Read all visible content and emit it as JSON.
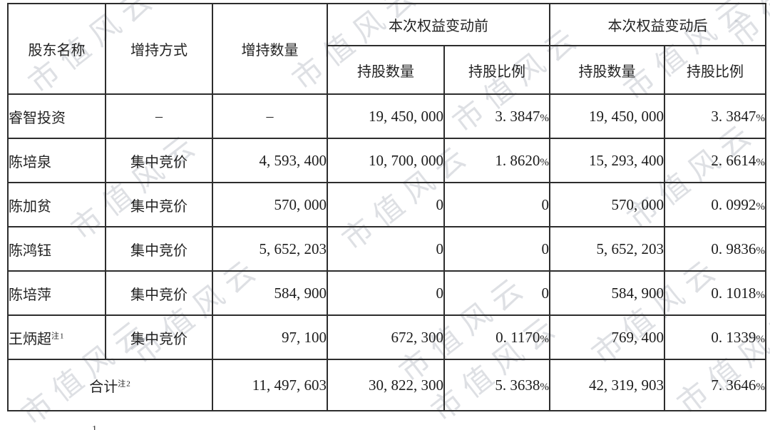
{
  "colors": {
    "border": "#2d2d2d",
    "text": "#1e1e1e",
    "watermark": "#9aa0ac",
    "background": "#ffffff"
  },
  "watermark": {
    "text": "市值风云"
  },
  "table": {
    "headers": {
      "shareholder": "股东名称",
      "method": "增持方式",
      "quantity": "增持数量",
      "before_group": "本次权益变动前",
      "after_group": "本次权益变动后",
      "shares": "持股数量",
      "ratio": "持股比例"
    },
    "rows": [
      {
        "name": "睿智投资",
        "method": "–",
        "qty": "–",
        "pre_shares": "19, 450, 000",
        "pre_pct": "3. 3847%",
        "post_shares": "19, 450, 000",
        "post_pct": "3. 3847%"
      },
      {
        "name": "陈培泉",
        "method": "集中竞价",
        "qty": "4, 593, 400",
        "pre_shares": "10, 700, 000",
        "pre_pct": "1. 8620%",
        "post_shares": "15, 293, 400",
        "post_pct": "2. 6614%"
      },
      {
        "name": "陈加贫",
        "method": "集中竞价",
        "qty": "570, 000",
        "pre_shares": "0",
        "pre_pct": "0",
        "post_shares": "570, 000",
        "post_pct": "0. 0992%"
      },
      {
        "name": "陈鸿钰",
        "method": "集中竞价",
        "qty": "5, 652, 203",
        "pre_shares": "0",
        "pre_pct": "0",
        "post_shares": "5, 652, 203",
        "post_pct": "0. 9836%"
      },
      {
        "name": "陈培萍",
        "method": "集中竞价",
        "qty": "584, 900",
        "pre_shares": "0",
        "pre_pct": "0",
        "post_shares": "584, 900",
        "post_pct": "0. 1018%"
      },
      {
        "name": "王炳超",
        "name_sup": "注1",
        "method": "集中竞价",
        "qty": "97, 100",
        "pre_shares": "672, 300",
        "pre_pct": "0. 1170%",
        "post_shares": "769, 400",
        "post_pct": "0. 1339%"
      }
    ],
    "total": {
      "label": "合计",
      "label_sup": "注2",
      "qty": "11, 497, 603",
      "pre_shares": "30, 822, 300",
      "pre_pct": "5. 3638%",
      "post_shares": "42, 319, 903",
      "post_pct": "7. 3646%"
    }
  },
  "footnote_partial": "1"
}
